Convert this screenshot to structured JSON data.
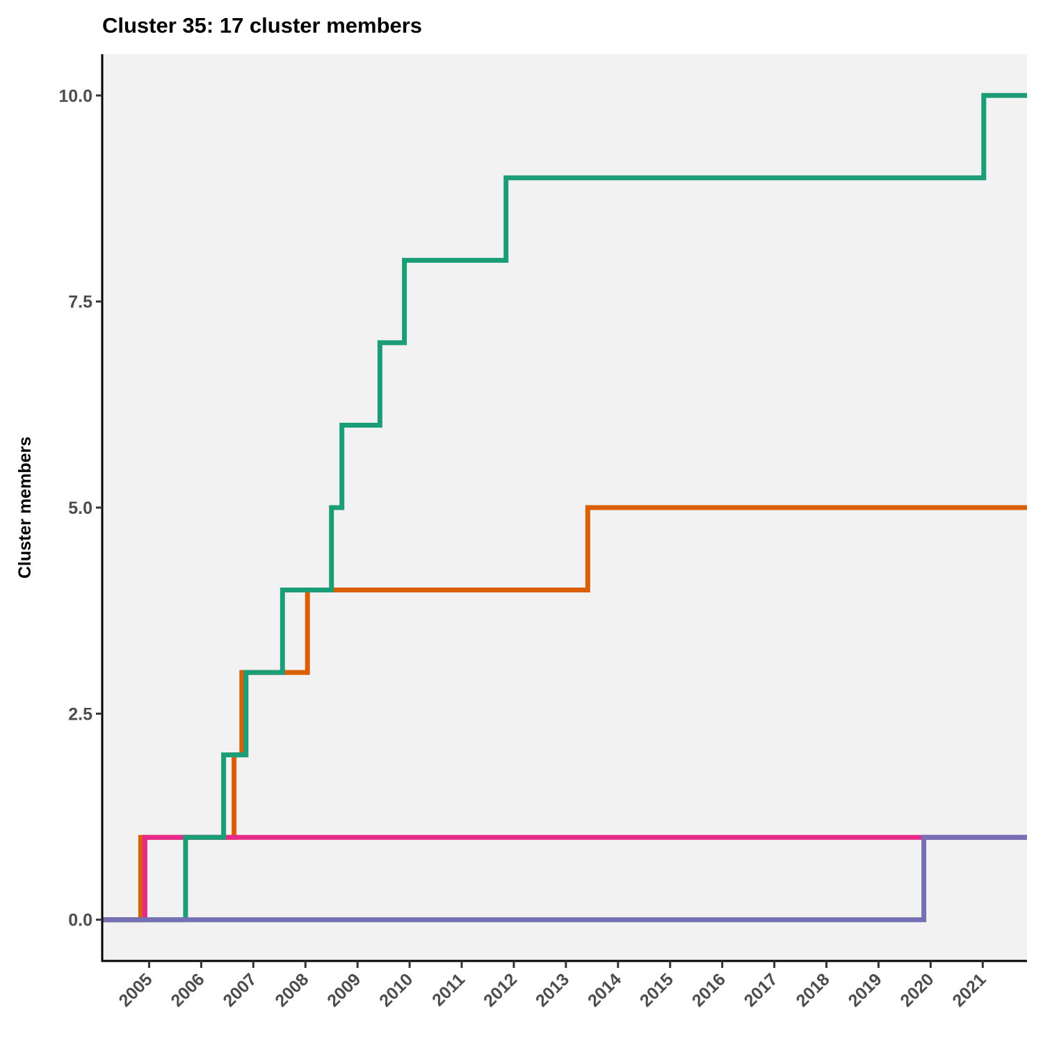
{
  "chart_data": {
    "type": "line",
    "step": true,
    "title": "Cluster 35: 17 cluster members",
    "xlabel": "",
    "ylabel": "Cluster members",
    "xlim": [
      2004.1,
      2021.85
    ],
    "ylim": [
      -0.5,
      10.5
    ],
    "yticks": [
      0,
      2.5,
      5,
      7.5,
      10
    ],
    "ytick_labels": [
      "0.0",
      "2.5",
      "5.0",
      "7.5",
      "10.0"
    ],
    "xticks": [
      2005,
      2006,
      2007,
      2008,
      2009,
      2010,
      2011,
      2012,
      2013,
      2014,
      2015,
      2016,
      2017,
      2018,
      2019,
      2020,
      2021
    ],
    "xtick_labels": [
      "2005",
      "2006",
      "2007",
      "2008",
      "2009",
      "2010",
      "2011",
      "2012",
      "2013",
      "2014",
      "2015",
      "2016",
      "2017",
      "2018",
      "2019",
      "2020",
      "2021"
    ],
    "grid": false,
    "panel_background": "#f2f2f2",
    "series": [
      {
        "color": "#d95f02",
        "x": [
          2004.1,
          2004.84,
          2006.63,
          2006.78,
          2008.04,
          2013.42,
          2021.85
        ],
        "y": [
          0,
          1,
          2,
          3,
          4,
          5,
          5
        ]
      },
      {
        "color": "#e7298a",
        "x": [
          2004.1,
          2004.92,
          2021.85
        ],
        "y": [
          0,
          1,
          1
        ]
      },
      {
        "color": "#1b9e77",
        "x": [
          2004.1,
          2005.7,
          2006.43,
          2006.86,
          2007.56,
          2008.5,
          2008.7,
          2009.43,
          2009.9,
          2011.85,
          2021.02,
          2021.85
        ],
        "y": [
          0,
          1,
          2,
          3,
          4,
          5,
          6,
          7,
          8,
          9,
          10,
          10
        ]
      },
      {
        "color": "#7570b3",
        "x": [
          2004.1,
          2019.87,
          2021.85
        ],
        "y": [
          0,
          1,
          1
        ]
      }
    ]
  }
}
